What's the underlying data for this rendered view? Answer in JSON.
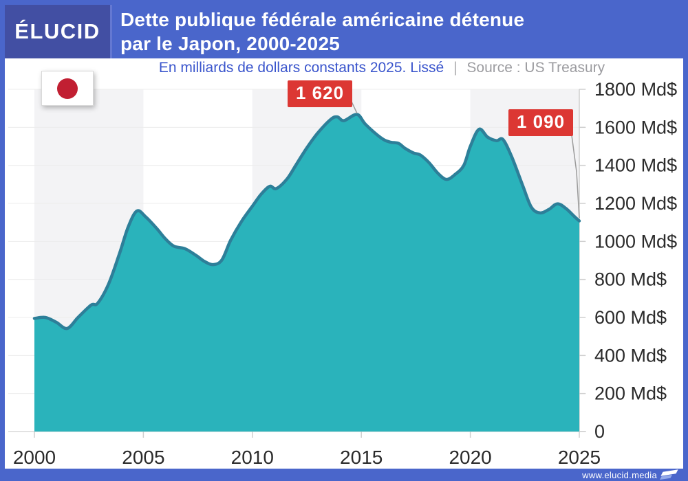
{
  "header": {
    "logo": "ÉLUCID",
    "title_line1": "Dette publique fédérale américaine détenue",
    "title_line2": "par le Japon, 2000-2025"
  },
  "subtitle": {
    "text": "En milliards de dollars constants 2025. Lissé",
    "separator": "|",
    "source": "Source : US Treasury"
  },
  "footer": {
    "url": "www.elucid.media"
  },
  "colors": {
    "frame_blue": "#4a66cb",
    "logo_blue": "#424fa3",
    "subtitle_blue": "#3a55cc",
    "area_fill": "#2ab3bb",
    "area_stroke": "#2d7f99",
    "badge_red": "#dc3733",
    "flag_red": "#c11f32",
    "grid_line": "#ececec",
    "axis_line": "#cfcfcf",
    "baseline": "#d8d8d8",
    "band_gray": "#f3f3f5",
    "label_dark": "#2b2b2b",
    "connector_gray": "#9b9b9b"
  },
  "chart_data": {
    "type": "area",
    "title": "Dette publique fédérale américaine détenue par le Japon, 2000-2025",
    "subtitle": "En milliards de dollars constants 2025. Lissé",
    "source": "US Treasury",
    "xlabel": "",
    "ylabel": "Md$",
    "xlim": [
      2000,
      2025
    ],
    "ylim": [
      0,
      1800
    ],
    "grid": "horizontal",
    "x_ticks": [
      {
        "year": 2000,
        "label": "2000"
      },
      {
        "year": 2005,
        "label": "2005"
      },
      {
        "year": 2010,
        "label": "2010"
      },
      {
        "year": 2015,
        "label": "2015"
      },
      {
        "year": 2020,
        "label": "2020"
      },
      {
        "year": 2025,
        "label": "2025"
      }
    ],
    "y_ticks": [
      {
        "v": 0,
        "label": "0"
      },
      {
        "v": 200,
        "label": "200 Md$"
      },
      {
        "v": 400,
        "label": "400 Md$"
      },
      {
        "v": 600,
        "label": "600 Md$"
      },
      {
        "v": 800,
        "label": "800 Md$"
      },
      {
        "v": 1000,
        "label": "1000 Md$"
      },
      {
        "v": 1200,
        "label": "1200 Md$"
      },
      {
        "v": 1400,
        "label": "1400 Md$"
      },
      {
        "v": 1600,
        "label": "1600 Md$"
      },
      {
        "v": 1800,
        "label": "1800 Md$"
      }
    ],
    "points": [
      [
        2000.0,
        595
      ],
      [
        2000.5,
        600
      ],
      [
        2001.0,
        575
      ],
      [
        2001.5,
        542
      ],
      [
        2002.0,
        600
      ],
      [
        2002.6,
        665
      ],
      [
        2002.9,
        675
      ],
      [
        2003.4,
        775
      ],
      [
        2003.9,
        935
      ],
      [
        2004.3,
        1075
      ],
      [
        2004.7,
        1160
      ],
      [
        2005.1,
        1130
      ],
      [
        2005.6,
        1070
      ],
      [
        2006.0,
        1015
      ],
      [
        2006.4,
        975
      ],
      [
        2006.9,
        962
      ],
      [
        2007.4,
        928
      ],
      [
        2007.8,
        895
      ],
      [
        2008.2,
        878
      ],
      [
        2008.6,
        902
      ],
      [
        2009.0,
        1005
      ],
      [
        2009.5,
        1105
      ],
      [
        2010.0,
        1185
      ],
      [
        2010.4,
        1248
      ],
      [
        2010.8,
        1290
      ],
      [
        2011.1,
        1278
      ],
      [
        2011.6,
        1330
      ],
      [
        2012.0,
        1402
      ],
      [
        2012.5,
        1492
      ],
      [
        2013.0,
        1570
      ],
      [
        2013.6,
        1642
      ],
      [
        2013.9,
        1655
      ],
      [
        2014.2,
        1635
      ],
      [
        2014.8,
        1668
      ],
      [
        2015.2,
        1615
      ],
      [
        2015.9,
        1545
      ],
      [
        2016.3,
        1523
      ],
      [
        2016.7,
        1516
      ],
      [
        2017.0,
        1490
      ],
      [
        2017.4,
        1465
      ],
      [
        2017.7,
        1455
      ],
      [
        2018.1,
        1415
      ],
      [
        2018.5,
        1360
      ],
      [
        2018.9,
        1326
      ],
      [
        2019.3,
        1352
      ],
      [
        2019.7,
        1400
      ],
      [
        2020.0,
        1500
      ],
      [
        2020.4,
        1590
      ],
      [
        2020.8,
        1548
      ],
      [
        2021.2,
        1530
      ],
      [
        2021.5,
        1536
      ],
      [
        2021.9,
        1445
      ],
      [
        2022.4,
        1295
      ],
      [
        2022.8,
        1180
      ],
      [
        2023.2,
        1150
      ],
      [
        2023.6,
        1168
      ],
      [
        2024.0,
        1198
      ],
      [
        2024.4,
        1172
      ],
      [
        2024.8,
        1128
      ],
      [
        2025.0,
        1108
      ]
    ],
    "annotations": [
      {
        "label": "1 620",
        "year": 2014.8
      },
      {
        "label": "1 090",
        "year": 2025.0
      }
    ]
  }
}
